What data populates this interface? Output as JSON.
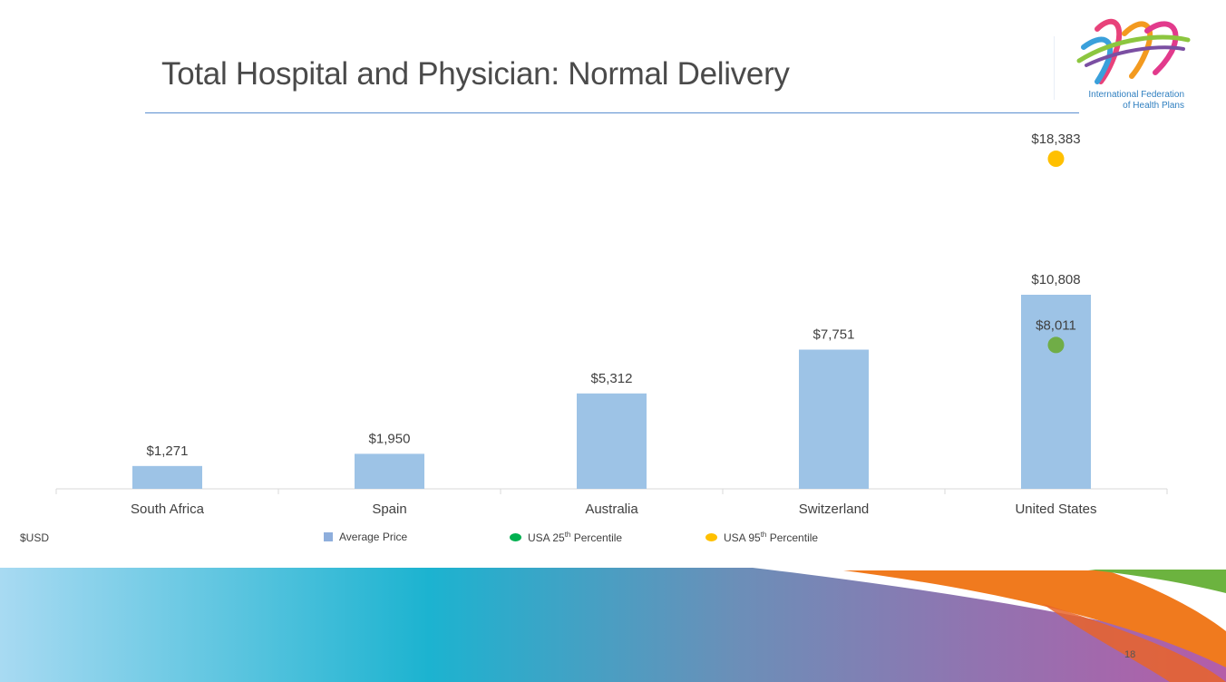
{
  "slide": {
    "title": "Total Hospital and Physician: Normal Delivery",
    "logo_text_line1": "International Federation",
    "logo_text_line2": "of Health Plans",
    "unit_label": "$USD",
    "page_number": "18"
  },
  "legend": {
    "average": "Average Price",
    "p25_prefix": "USA 25",
    "p25_sup": "th",
    "p25_suffix": " Percentile",
    "p95_prefix": "USA 95",
    "p95_sup": "th",
    "p95_suffix": " Percentile"
  },
  "colors": {
    "bar": "#9dc3e6",
    "p25": "#70ad47",
    "p95": "#ffc000",
    "legend_bar": "#8eaedc",
    "legend_p25": "#00b050",
    "legend_p95": "#ffc000"
  },
  "chart_data": {
    "type": "bar",
    "title": "Total Hospital and Physician: Normal Delivery",
    "categories": [
      "South Africa",
      "Spain",
      "Australia",
      "Switzerland",
      "United States"
    ],
    "series": [
      {
        "name": "Average Price",
        "type": "bar",
        "values": [
          1271,
          1950,
          5312,
          7751,
          10808
        ],
        "labels": [
          "$1,271",
          "$1,950",
          "$5,312",
          "$7,751",
          "$10,808"
        ]
      },
      {
        "name": "USA 25th Percentile",
        "type": "scatter",
        "category": "United States",
        "value": 8011,
        "label": "$8,011"
      },
      {
        "name": "USA 95th Percentile",
        "type": "scatter",
        "category": "United States",
        "value": 18383,
        "label": "$18,383"
      }
    ],
    "ylabel": "$USD",
    "ylim": [
      0,
      20000
    ],
    "grid": false,
    "legend_position": "bottom"
  }
}
